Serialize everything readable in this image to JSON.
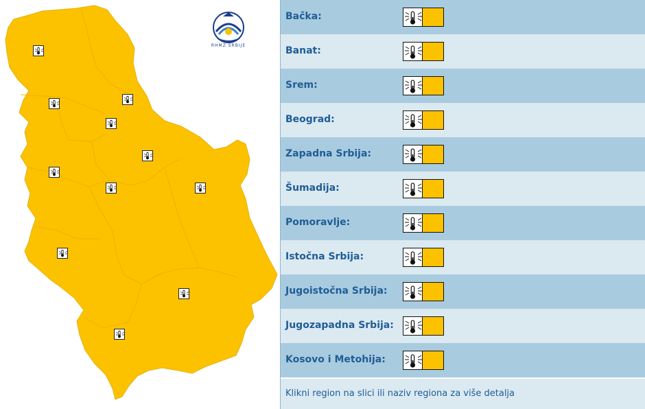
{
  "colors": {
    "warning_level": "#fcc200",
    "row_dark": "#a9cbdf",
    "row_light": "#dbe9f1",
    "label_text": "#1f5d96"
  },
  "logo": {
    "icon": "hydrometeorological-service-logo",
    "text": "RHMZ SRBIJE"
  },
  "map": {
    "icon": "thermometer-icon",
    "warning_color": "#fcc200"
  },
  "regions": [
    {
      "label": "Bačka:",
      "icon": "thermometer-icon",
      "warning_color": "#fcc200"
    },
    {
      "label": "Banat:",
      "icon": "thermometer-icon",
      "warning_color": "#fcc200"
    },
    {
      "label": "Srem:",
      "icon": "thermometer-icon",
      "warning_color": "#fcc200"
    },
    {
      "label": "Beograd:",
      "icon": "thermometer-icon",
      "warning_color": "#fcc200"
    },
    {
      "label": "Zapadna Srbija:",
      "icon": "thermometer-icon",
      "warning_color": "#fcc200"
    },
    {
      "label": "Šumadija:",
      "icon": "thermometer-icon",
      "warning_color": "#fcc200"
    },
    {
      "label": "Pomoravlje:",
      "icon": "thermometer-icon",
      "warning_color": "#fcc200"
    },
    {
      "label": "Istočna Srbija:",
      "icon": "thermometer-icon",
      "warning_color": "#fcc200"
    },
    {
      "label": "Jugoistočna Srbija:",
      "icon": "thermometer-icon",
      "warning_color": "#fcc200"
    },
    {
      "label": "Jugozapadna Srbija:",
      "icon": "thermometer-icon",
      "warning_color": "#fcc200"
    },
    {
      "label": "Kosovo i Metohija:",
      "icon": "thermometer-icon",
      "warning_color": "#fcc200"
    }
  ],
  "footer": {
    "text": "Klikni region na slici ili naziv regiona za više detalja"
  }
}
